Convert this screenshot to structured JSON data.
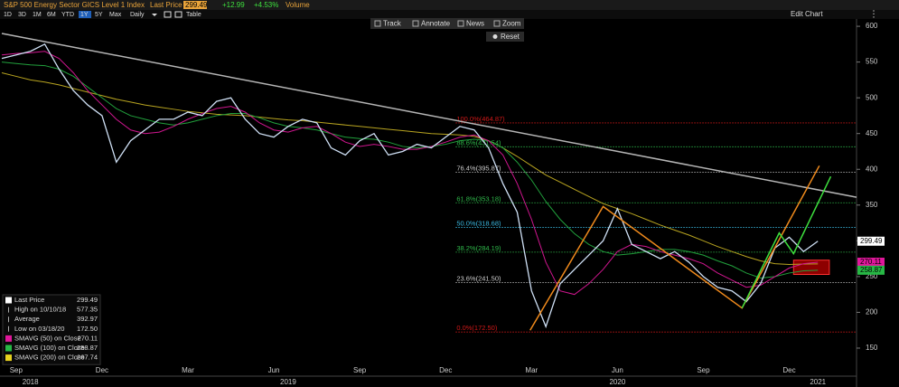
{
  "header": {
    "title": "S&P 500 Energy Sector GICS Level 1 Index",
    "last_price_label": "Last Price",
    "last_price": "299.49",
    "change": "+12.99",
    "change_pct": "+4.53%",
    "volume": "Volume"
  },
  "toolbar": {
    "periods": [
      "1D",
      "3D",
      "1M",
      "6M",
      "YTD",
      "1Y",
      "5Y",
      "Max"
    ],
    "active": 5,
    "frequency": "Daily",
    "table": "Table",
    "edit": "Edit Chart"
  },
  "chart_tools": [
    "Track",
    "Annotate",
    "News",
    "Zoom"
  ],
  "reset": "Reset",
  "chart_data": {
    "type": "line",
    "categories": [
      null,
      "Sep",
      null,
      null,
      null,
      null,
      null,
      "Dec",
      null,
      null,
      null,
      null,
      null,
      "Mar",
      null,
      null,
      null,
      null,
      null,
      "Jun",
      null,
      null,
      null,
      null,
      null,
      "Sep",
      null,
      null,
      null,
      null,
      null,
      "Dec",
      null,
      null,
      null,
      null,
      null,
      "Mar",
      null,
      null,
      null,
      null,
      null,
      "Jun",
      null,
      null,
      null,
      null,
      null,
      "Sep",
      null,
      null,
      null,
      null,
      null,
      "Dec",
      null,
      null
    ],
    "year_labels": [
      null,
      null,
      "2018",
      null,
      null,
      null,
      null,
      null,
      null,
      null,
      null,
      null,
      null,
      null,
      null,
      null,
      null,
      null,
      null,
      null,
      "2019",
      null,
      null,
      null,
      null,
      null,
      null,
      null,
      null,
      null,
      null,
      null,
      null,
      null,
      null,
      null,
      null,
      null,
      null,
      null,
      null,
      null,
      null,
      "2020",
      null,
      null,
      null,
      null,
      null,
      null,
      null,
      null,
      null,
      null,
      null,
      null,
      null,
      "2021"
    ],
    "xlim": [
      0,
      59.7
    ],
    "ylim": [
      131,
      614
    ],
    "yticks": [
      150,
      200,
      250,
      300,
      350,
      400,
      450,
      500,
      550,
      600
    ],
    "series": [
      {
        "name": "Last Price",
        "color": "#cfe0f5",
        "legend_color": "#ffffff",
        "legend_value": "299.49",
        "values": [
          555,
          560,
          565,
          575,
          540,
          510,
          490,
          475,
          410,
          440,
          455,
          470,
          470,
          480,
          475,
          495,
          500,
          470,
          450,
          445,
          460,
          470,
          465,
          430,
          420,
          440,
          450,
          420,
          425,
          435,
          430,
          445,
          460,
          455,
          430,
          380,
          340,
          230,
          180,
          240,
          260,
          280,
          300,
          345,
          295,
          285,
          275,
          285,
          270,
          250,
          235,
          230,
          215,
          240,
          290,
          305,
          285,
          299.49
        ]
      },
      {
        "name": "SMAVG (50) on Close",
        "color": "#d0168f",
        "legend_color": "#e0179b",
        "legend_value": "270.11",
        "values": [
          560,
          562,
          563,
          565,
          555,
          535,
          510,
          490,
          470,
          455,
          450,
          452,
          460,
          470,
          478,
          485,
          488,
          480,
          465,
          455,
          452,
          458,
          460,
          450,
          438,
          432,
          435,
          432,
          428,
          428,
          432,
          438,
          445,
          448,
          440,
          420,
          380,
          330,
          270,
          230,
          225,
          240,
          260,
          285,
          295,
          292,
          285,
          280,
          275,
          268,
          255,
          245,
          235,
          238,
          250,
          262,
          268,
          270.11
        ]
      },
      {
        "name": "SMAVG (100) on Close",
        "color": "#21a03c",
        "legend_color": "#27b845",
        "legend_value": "258.87",
        "values": [
          550,
          548,
          546,
          545,
          540,
          530,
          515,
          500,
          485,
          475,
          470,
          465,
          462,
          465,
          470,
          475,
          478,
          478,
          472,
          465,
          460,
          458,
          455,
          450,
          445,
          443,
          442,
          438,
          432,
          430,
          432,
          435,
          440,
          442,
          440,
          430,
          410,
          385,
          355,
          330,
          310,
          295,
          285,
          280,
          282,
          285,
          288,
          288,
          285,
          280,
          272,
          265,
          255,
          248,
          250,
          255,
          258,
          258.87
        ]
      },
      {
        "name": "SMAVG (200) on Close",
        "color": "#b8a420",
        "legend_color": "#e8d31f",
        "legend_value": "267.74",
        "values": [
          535,
          530,
          525,
          522,
          518,
          513,
          508,
          503,
          498,
          494,
          490,
          487,
          484,
          481,
          479,
          477,
          476,
          475,
          473,
          471,
          469,
          468,
          466,
          464,
          462,
          460,
          458,
          456,
          454,
          452,
          450,
          449,
          448,
          446,
          440,
          430,
          418,
          405,
          392,
          382,
          372,
          362,
          352,
          345,
          338,
          330,
          322,
          315,
          308,
          300,
          292,
          285,
          278,
          272,
          268,
          267,
          267.5,
          267.74
        ]
      }
    ],
    "stats": [
      {
        "label": "High on 10/10/18",
        "value": "577.35"
      },
      {
        "label": "Average",
        "value": "392.97"
      },
      {
        "label": "Low on 03/18/20",
        "value": "172.50"
      }
    ],
    "fib_start": 31.7,
    "fib_levels": [
      {
        "label": "100.0%(464.87)",
        "value": 464.87,
        "color": "#d01818"
      },
      {
        "label": "88.6%(431.54)",
        "value": 431.54,
        "color": "#2fb84a"
      },
      {
        "label": "76.4%(395.87)",
        "value": 395.87,
        "color": "#cccccc"
      },
      {
        "label": "61.8%(353.18)",
        "value": 353.18,
        "color": "#2fb84a"
      },
      {
        "label": "50.0%(318.68)",
        "value": 318.68,
        "color": "#3ab8e0"
      },
      {
        "label": "38.2%(284.19)",
        "value": 284.19,
        "color": "#2fb84a"
      },
      {
        "label": "23.6%(241.50)",
        "value": 241.5,
        "color": "#cccccc"
      },
      {
        "label": "0.0%(172.50)",
        "value": 172.5,
        "color": "#d01818"
      }
    ],
    "trend_lines": [
      {
        "color": "#b5b5b5",
        "points": [
          [
            0,
            590
          ],
          [
            59.7,
            361
          ]
        ]
      },
      {
        "color": "#f08a1c",
        "points": [
          [
            36.9,
            175
          ],
          [
            42,
            348
          ],
          [
            51.7,
            206
          ],
          [
            57.1,
            405
          ]
        ]
      },
      {
        "color": "#3ee03e",
        "points": [
          [
            51.7,
            206
          ],
          [
            54.3,
            311
          ],
          [
            55.3,
            282
          ],
          [
            57.9,
            390
          ]
        ]
      }
    ],
    "highlight_box": {
      "x": [
        55.3,
        57.8
      ],
      "y": [
        253,
        273
      ],
      "color": "#b00000"
    },
    "price_tags": [
      {
        "value": 299.49,
        "color": "#ffffff",
        "text_color": "#000000"
      },
      {
        "value": 270.11,
        "color": "#e0179b",
        "text_color": "#000000"
      },
      {
        "value": 258.87,
        "color": "#27b845",
        "text_color": "#000000"
      }
    ]
  }
}
